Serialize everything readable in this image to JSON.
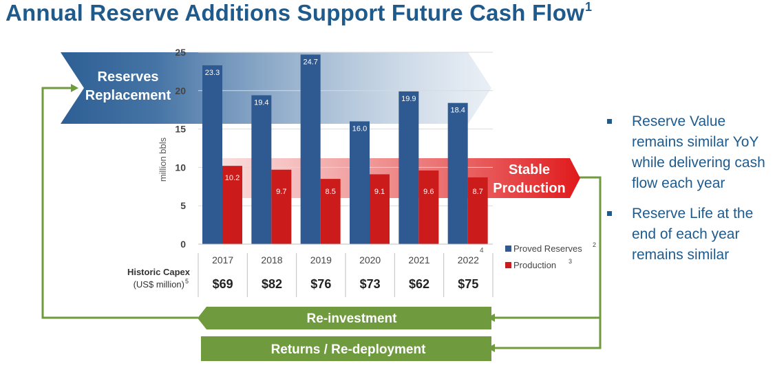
{
  "title": {
    "text": "Annual Reserve Additions Support Future Cash Flow",
    "sup": "1"
  },
  "colors": {
    "title": "#1f5a8c",
    "reserves": "#2f5a91",
    "production": "#cc1b1b",
    "green": "#6f9a3e",
    "arrow_blue": "#2e5f94",
    "arrow_red": "#e0191b"
  },
  "chart_data": {
    "type": "bar",
    "categories": [
      "2017",
      "2018",
      "2019",
      "2020",
      "2021",
      "2022"
    ],
    "category_footnote": "4",
    "series": [
      {
        "name": "Proved Reserves",
        "footnote": "2",
        "values": [
          23.3,
          19.4,
          24.7,
          16.0,
          19.9,
          18.4
        ]
      },
      {
        "name": "Production",
        "footnote": "3",
        "values": [
          10.2,
          9.7,
          8.5,
          9.1,
          9.6,
          8.7
        ]
      }
    ],
    "ylabel": "million bbls",
    "ylim": [
      0,
      25
    ],
    "yticks": [
      "0",
      "5",
      "10",
      "15",
      "20",
      "25"
    ],
    "grid": true,
    "legend_position": "bottom-right"
  },
  "capex": {
    "label": "Historic Capex",
    "unit_label": "(US$ million)",
    "unit_footnote": "5",
    "values": [
      "$69",
      "$82",
      "$76",
      "$73",
      "$62",
      "$75"
    ]
  },
  "arrows": {
    "reserves_replacement": [
      "Reserves",
      "Replacement"
    ],
    "stable_production": [
      "Stable",
      "Production"
    ],
    "reinvestment": "Re-investment",
    "returns": "Returns / Re-deployment"
  },
  "bullets": [
    "Reserve Value remains similar YoY while delivering cash flow each year",
    "Reserve Life at the end of each year remains similar"
  ]
}
